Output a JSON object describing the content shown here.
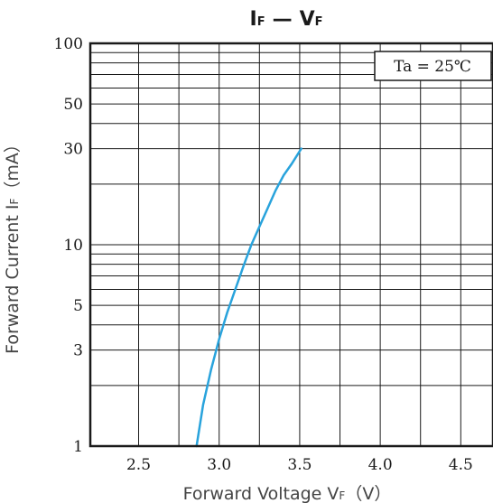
{
  "chart_data": {
    "type": "line",
    "title": {
      "main": "I",
      "sub1": "F",
      "dash": "—",
      "main2": "V",
      "sub2": "F"
    },
    "xlabel": {
      "text": "Forward Voltage  V",
      "sub": "F",
      "unit": "（V）"
    },
    "ylabel": {
      "text": "Forward Current  I",
      "sub": "F",
      "unit": "（mA）"
    },
    "annotation": "Ta = 25℃",
    "x_scale": "linear",
    "y_scale": "log",
    "xlim": [
      2.2,
      4.7
    ],
    "ylim": [
      1,
      100
    ],
    "x_ticks": [
      {
        "value": 2.5,
        "label": "2.5"
      },
      {
        "value": 3.0,
        "label": "3.0"
      },
      {
        "value": 3.5,
        "label": "3.5"
      },
      {
        "value": 4.0,
        "label": "4.0"
      },
      {
        "value": 4.5,
        "label": "4.5"
      }
    ],
    "y_ticks": [
      {
        "value": 1,
        "label": "1"
      },
      {
        "value": 3,
        "label": "3"
      },
      {
        "value": 5,
        "label": "5"
      },
      {
        "value": 10,
        "label": "10"
      },
      {
        "value": 30,
        "label": "30"
      },
      {
        "value": 50,
        "label": "50"
      },
      {
        "value": 100,
        "label": "100"
      }
    ],
    "x_grid": [
      2.5,
      2.75,
      3.0,
      3.25,
      3.5,
      3.75,
      4.0,
      4.25,
      4.5
    ],
    "y_grid": [
      2,
      3,
      4,
      5,
      6,
      7,
      8,
      9,
      10,
      20,
      30,
      40,
      50,
      60,
      70,
      80,
      90
    ],
    "grid": true,
    "series": [
      {
        "color": "#29a3dc",
        "x": [
          2.86,
          2.9,
          2.95,
          3.0,
          3.05,
          3.1,
          3.15,
          3.2,
          3.25,
          3.3,
          3.35,
          3.4,
          3.45,
          3.51
        ],
        "y": [
          1.0,
          1.6,
          2.4,
          3.4,
          4.6,
          6.0,
          7.8,
          10.0,
          12.3,
          15.1,
          18.6,
          22.1,
          25.2,
          30.0
        ]
      }
    ]
  }
}
